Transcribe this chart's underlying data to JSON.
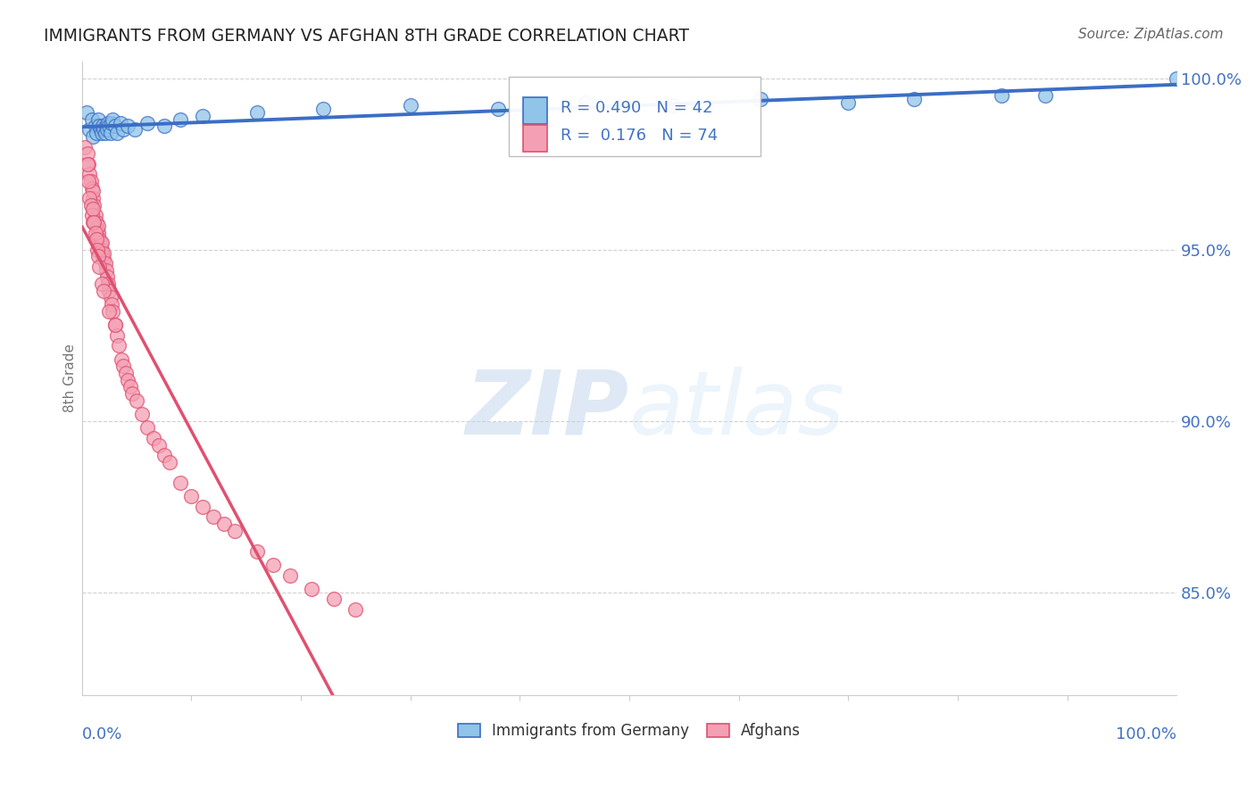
{
  "title": "IMMIGRANTS FROM GERMANY VS AFGHAN 8TH GRADE CORRELATION CHART",
  "source": "Source: ZipAtlas.com",
  "ylabel": "8th Grade",
  "legend_germany": "Immigrants from Germany",
  "legend_afghans": "Afghans",
  "R_germany": 0.49,
  "N_germany": 42,
  "R_afghans": 0.176,
  "N_afghans": 74,
  "color_germany": "#90C4E8",
  "color_afghans": "#F4A0B4",
  "color_line_germany": "#3B6EC4",
  "color_line_afghans": "#E05070",
  "color_axis_labels": "#4472C4",
  "color_title": "#222222",
  "watermark_zip": "ZIP",
  "watermark_atlas": "atlas",
  "background_color": "#FFFFFF",
  "xlim": [
    0.0,
    1.0
  ],
  "germany_x": [
    0.004,
    0.007,
    0.009,
    0.01,
    0.012,
    0.013,
    0.015,
    0.016,
    0.017,
    0.018,
    0.019,
    0.02,
    0.021,
    0.022,
    0.023,
    0.024,
    0.025,
    0.026,
    0.027,
    0.028,
    0.03,
    0.032,
    0.035,
    0.038,
    0.042,
    0.048,
    0.06,
    0.075,
    0.09,
    0.11,
    0.16,
    0.22,
    0.3,
    0.38,
    0.46,
    0.54,
    0.62,
    0.7,
    0.76,
    0.84,
    0.88,
    1.0
  ],
  "germany_y": [
    0.99,
    0.985,
    0.988,
    0.983,
    0.986,
    0.984,
    0.988,
    0.986,
    0.985,
    0.984,
    0.986,
    0.985,
    0.984,
    0.986,
    0.985,
    0.987,
    0.986,
    0.984,
    0.987,
    0.988,
    0.986,
    0.984,
    0.987,
    0.985,
    0.986,
    0.985,
    0.987,
    0.986,
    0.988,
    0.989,
    0.99,
    0.991,
    0.992,
    0.991,
    0.993,
    0.992,
    0.994,
    0.993,
    0.994,
    0.995,
    0.995,
    1.0
  ],
  "afghans_x": [
    0.003,
    0.005,
    0.006,
    0.007,
    0.008,
    0.009,
    0.01,
    0.01,
    0.011,
    0.012,
    0.013,
    0.014,
    0.015,
    0.015,
    0.016,
    0.017,
    0.018,
    0.018,
    0.019,
    0.02,
    0.02,
    0.021,
    0.022,
    0.023,
    0.024,
    0.025,
    0.026,
    0.027,
    0.028,
    0.03,
    0.032,
    0.034,
    0.036,
    0.038,
    0.04,
    0.042,
    0.044,
    0.046,
    0.05,
    0.055,
    0.06,
    0.065,
    0.07,
    0.075,
    0.08,
    0.09,
    0.1,
    0.11,
    0.12,
    0.13,
    0.14,
    0.16,
    0.175,
    0.19,
    0.21,
    0.23,
    0.25,
    0.005,
    0.006,
    0.007,
    0.008,
    0.009,
    0.01,
    0.01,
    0.011,
    0.012,
    0.013,
    0.014,
    0.015,
    0.016,
    0.018,
    0.02,
    0.025,
    0.03
  ],
  "afghans_y": [
    0.98,
    0.978,
    0.975,
    0.972,
    0.97,
    0.968,
    0.965,
    0.967,
    0.963,
    0.96,
    0.958,
    0.956,
    0.955,
    0.957,
    0.953,
    0.952,
    0.95,
    0.952,
    0.948,
    0.947,
    0.949,
    0.946,
    0.944,
    0.942,
    0.94,
    0.938,
    0.936,
    0.934,
    0.932,
    0.928,
    0.925,
    0.922,
    0.918,
    0.916,
    0.914,
    0.912,
    0.91,
    0.908,
    0.906,
    0.902,
    0.898,
    0.895,
    0.893,
    0.89,
    0.888,
    0.882,
    0.878,
    0.875,
    0.872,
    0.87,
    0.868,
    0.862,
    0.858,
    0.855,
    0.851,
    0.848,
    0.845,
    0.975,
    0.97,
    0.965,
    0.963,
    0.96,
    0.958,
    0.962,
    0.958,
    0.955,
    0.953,
    0.95,
    0.948,
    0.945,
    0.94,
    0.938,
    0.932,
    0.928
  ]
}
